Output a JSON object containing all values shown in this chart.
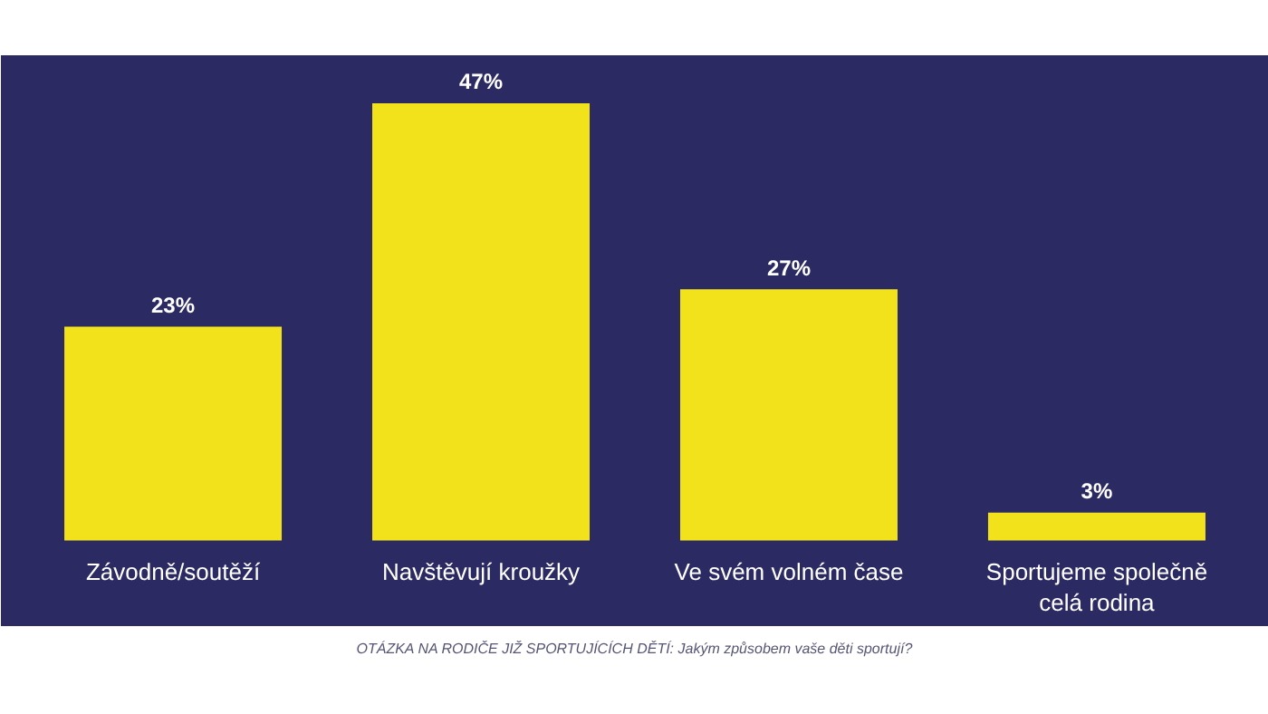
{
  "chart_data": {
    "type": "bar",
    "categories": [
      "Závodně/soutěží",
      "Navštěvují kroužky",
      "Ve svém volném čase",
      "Sportujeme společně\ncelá rodina"
    ],
    "values": [
      23,
      47,
      27,
      3
    ],
    "color": "#f2e21c",
    "value_labels": [
      "23%",
      "47%",
      "27%",
      "3%"
    ],
    "grid": false,
    "annotations": [
      "OTÁZKA NA RODIČE JIŽ SPORTUJÍCÍCH DĚTÍ: Jakým způsobem vaše děti sportují?"
    ]
  }
}
